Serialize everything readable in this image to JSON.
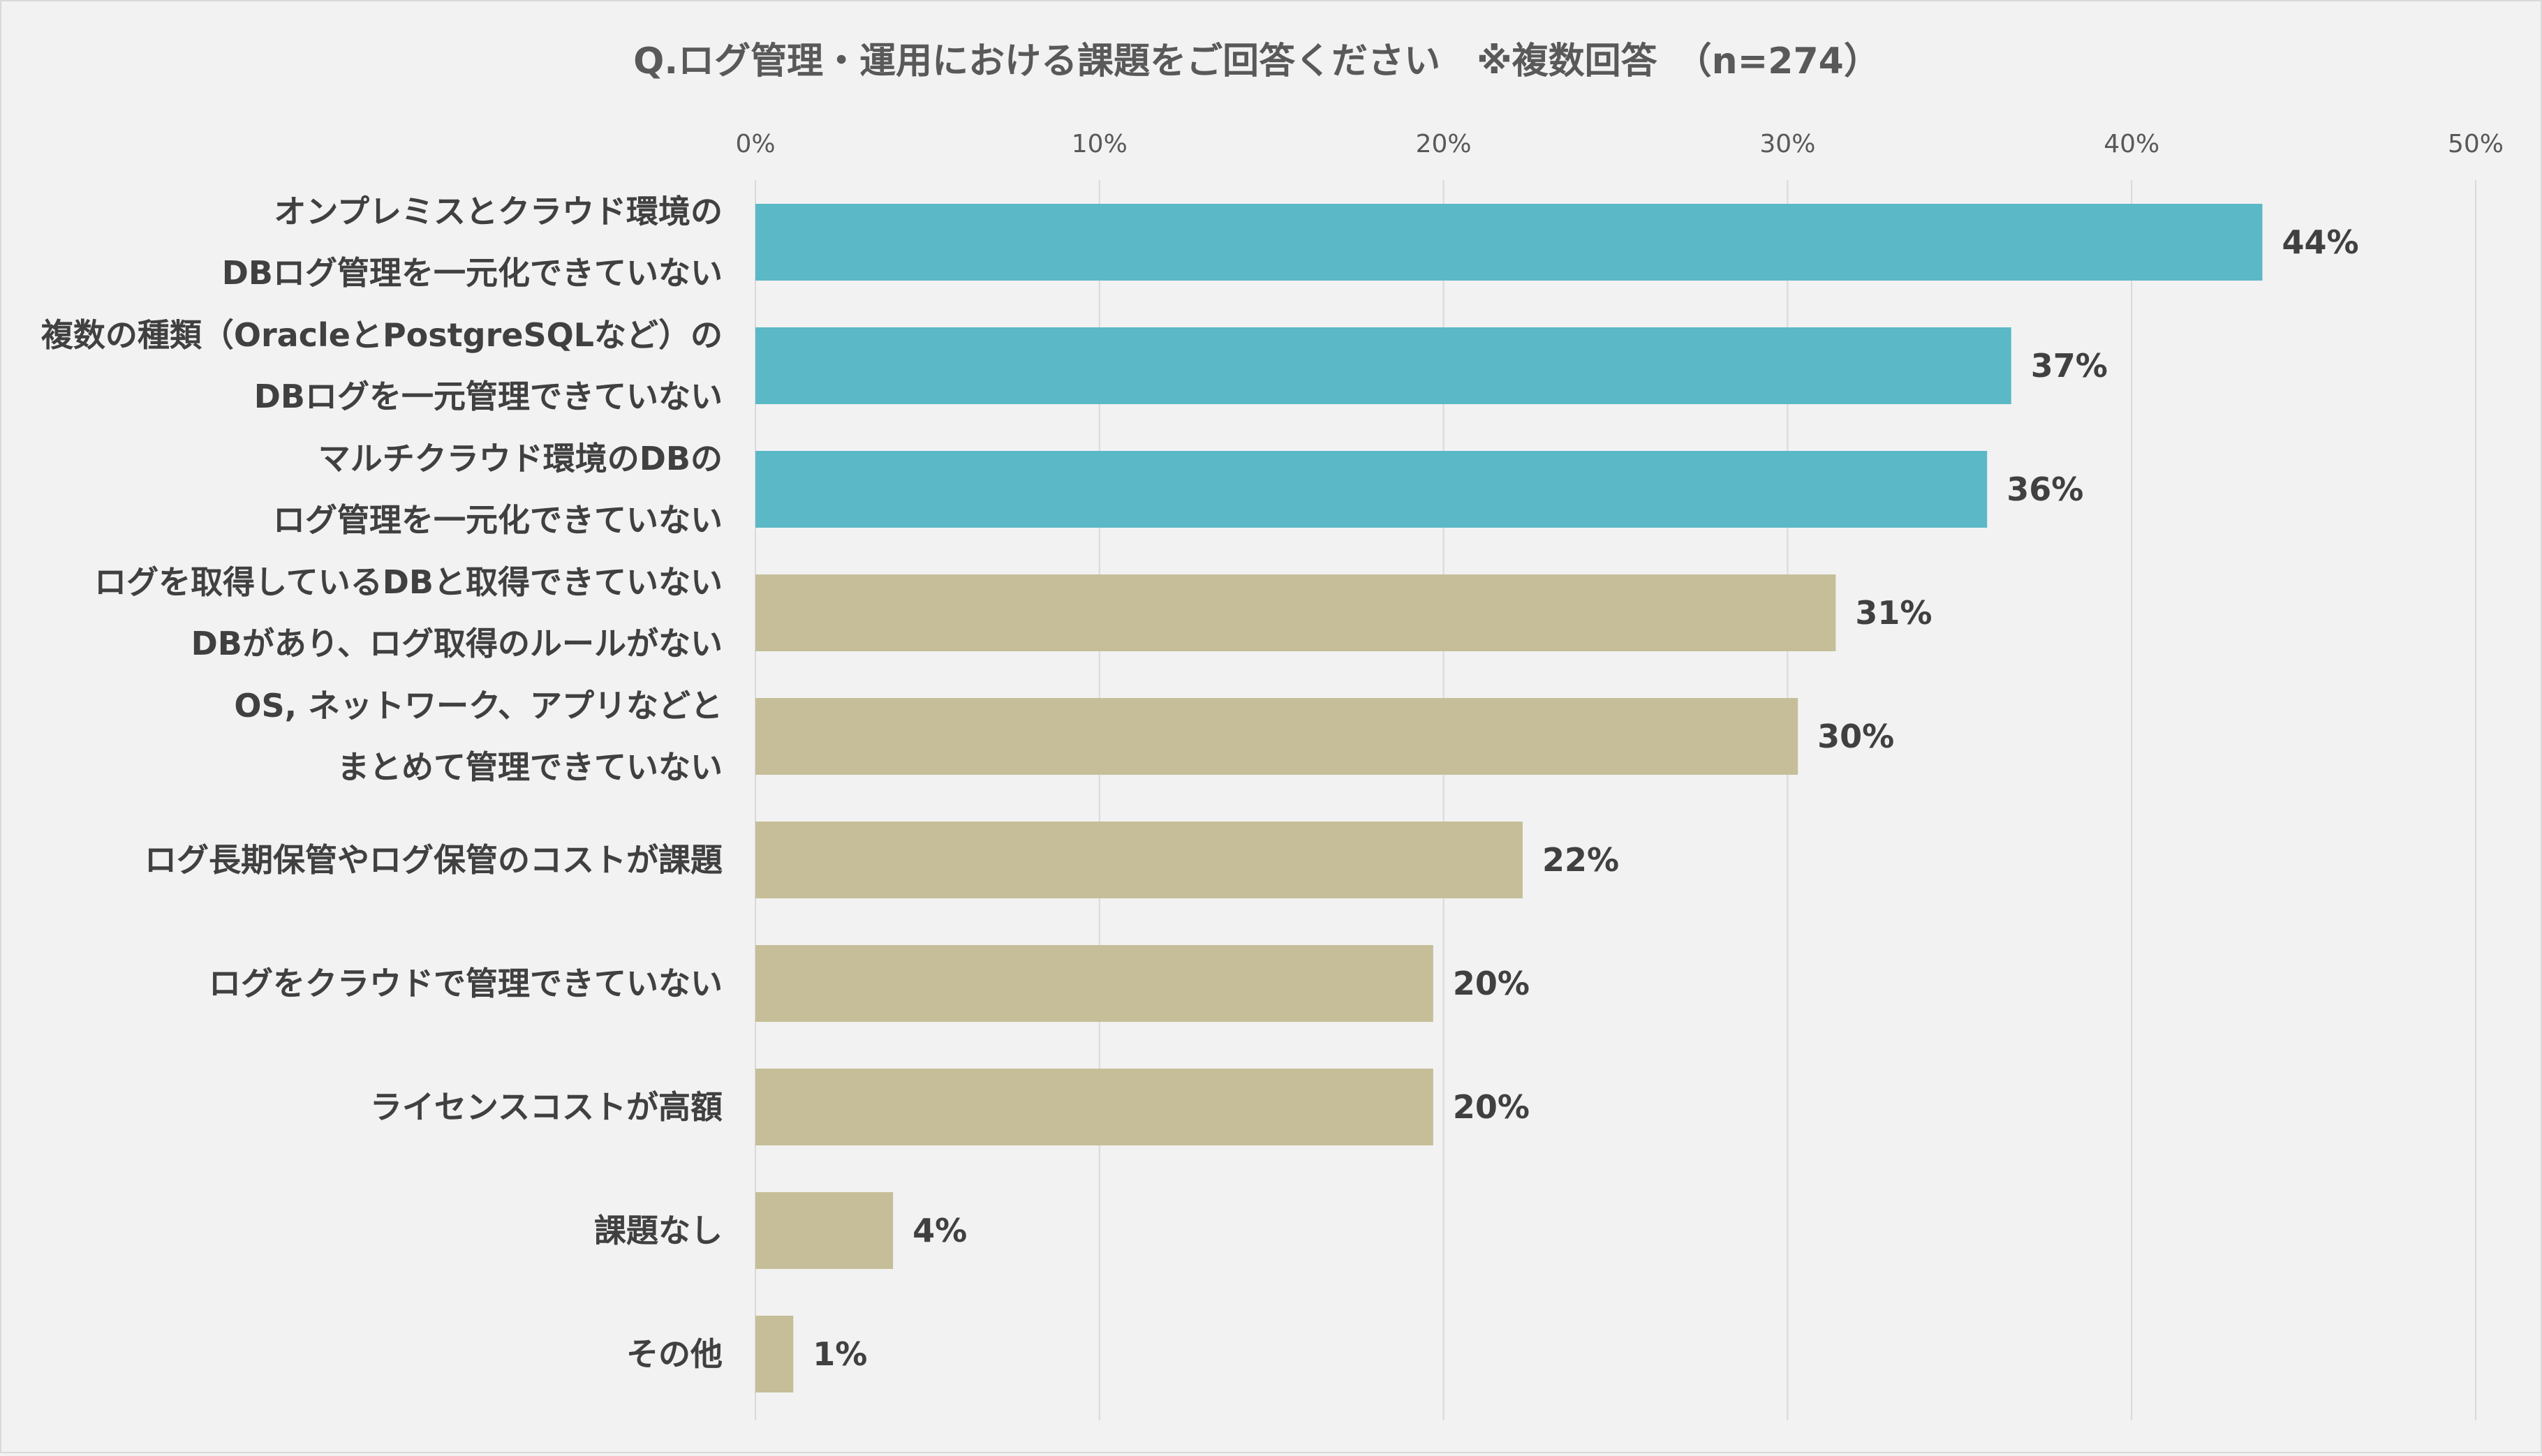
{
  "chart_data": {
    "type": "bar",
    "orientation": "horizontal",
    "title": "Q.ログ管理・運用における課題をご回答ください　※複数回答　（n=274）",
    "xlim": [
      0,
      50
    ],
    "x_ticks": [
      "0%",
      "10%",
      "20%",
      "30%",
      "40%",
      "50%"
    ],
    "x_tick_values": [
      0,
      10,
      20,
      30,
      40,
      50
    ],
    "grid": true,
    "legend": "none",
    "value_suffix": "%",
    "categories": [
      [
        "オンプレミスとクラウド環境の",
        "DBログ管理を一元化できていない"
      ],
      [
        "複数の種類（OracleとPostgreSQLなど）の",
        "DBログを一元管理できていない"
      ],
      [
        "マルチクラウド環境のDBの",
        "ログ管理を一元化できていない"
      ],
      [
        "ログを取得しているDBと取得できていない",
        "DBがあり、ログ取得のルールがない"
      ],
      [
        "OS, ネットワーク、アプリなどと",
        "まとめて管理できていない"
      ],
      [
        "ログ長期保管やログ保管のコストが課題"
      ],
      [
        "ログをクラウドで管理できていない"
      ],
      [
        "ライセンスコストが高額"
      ],
      [
        "課題なし"
      ],
      [
        "その他"
      ]
    ],
    "values": [
      43.8,
      36.5,
      35.8,
      31.4,
      30.3,
      22.3,
      19.7,
      19.7,
      4.0,
      1.1
    ],
    "labels": [
      "44%",
      "37%",
      "36%",
      "31%",
      "30%",
      "22%",
      "20%",
      "20%",
      "4%",
      "1%"
    ],
    "highlight_count": 3,
    "colors": {
      "highlight": "#5bb8c6",
      "normal": "#c5be98",
      "grid": "#d9d9d9",
      "text": "#404040",
      "background": "#f2f2f2"
    }
  }
}
